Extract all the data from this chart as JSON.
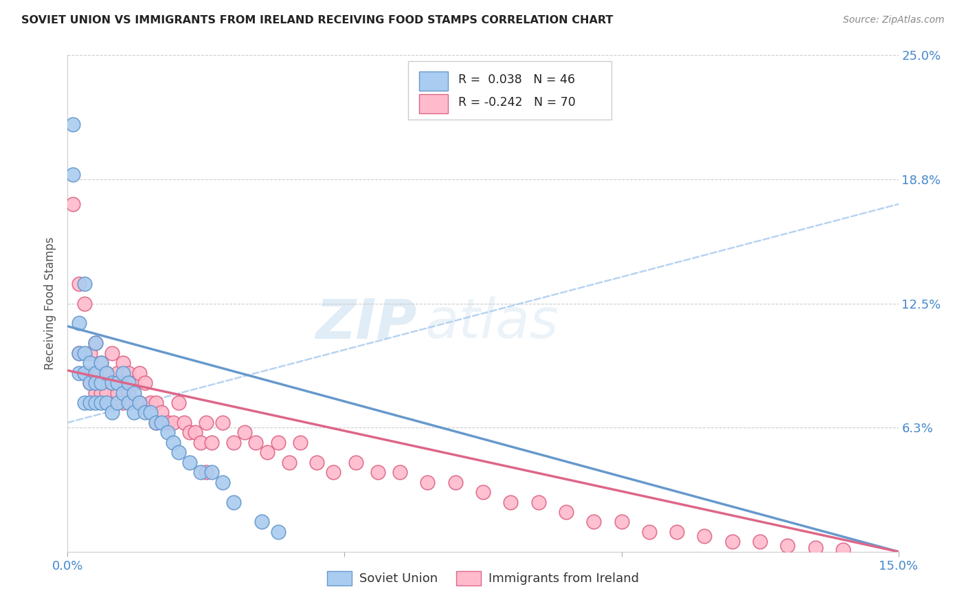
{
  "title": "SOVIET UNION VS IMMIGRANTS FROM IRELAND RECEIVING FOOD STAMPS CORRELATION CHART",
  "source": "Source: ZipAtlas.com",
  "ylabel": "Receiving Food Stamps",
  "xlim": [
    0.0,
    0.15
  ],
  "ylim": [
    0.0,
    0.25
  ],
  "series1_label": "Soviet Union",
  "series1_R": "0.038",
  "series1_N": "46",
  "series1_color": "#aaccf0",
  "series1_edge": "#6699cc",
  "series2_label": "Immigrants from Ireland",
  "series2_R": "-0.242",
  "series2_N": "70",
  "series2_color": "#ffbbcc",
  "series2_edge": "#dd6688",
  "background_color": "#ffffff",
  "grid_color": "#cccccc",
  "watermark_zip": "ZIP",
  "watermark_atlas": "atlas",
  "ytick_positions": [
    0.0,
    0.0625,
    0.125,
    0.1875,
    0.25
  ],
  "ytick_labels_right": [
    "",
    "6.3%",
    "12.5%",
    "18.8%",
    "25.0%"
  ],
  "xtick_positions": [
    0.0,
    0.05,
    0.1,
    0.15
  ],
  "xtick_labels": [
    "0.0%",
    "",
    "",
    "15.0%"
  ],
  "soviet_x": [
    0.001,
    0.001,
    0.002,
    0.002,
    0.002,
    0.003,
    0.003,
    0.003,
    0.003,
    0.004,
    0.004,
    0.004,
    0.005,
    0.005,
    0.005,
    0.005,
    0.006,
    0.006,
    0.006,
    0.007,
    0.007,
    0.008,
    0.008,
    0.009,
    0.009,
    0.01,
    0.01,
    0.011,
    0.011,
    0.012,
    0.012,
    0.013,
    0.014,
    0.015,
    0.016,
    0.017,
    0.018,
    0.019,
    0.02,
    0.022,
    0.024,
    0.026,
    0.028,
    0.03,
    0.035,
    0.038
  ],
  "soviet_y": [
    0.215,
    0.19,
    0.115,
    0.1,
    0.09,
    0.135,
    0.1,
    0.09,
    0.075,
    0.095,
    0.085,
    0.075,
    0.105,
    0.09,
    0.085,
    0.075,
    0.095,
    0.085,
    0.075,
    0.09,
    0.075,
    0.085,
    0.07,
    0.085,
    0.075,
    0.09,
    0.08,
    0.085,
    0.075,
    0.08,
    0.07,
    0.075,
    0.07,
    0.07,
    0.065,
    0.065,
    0.06,
    0.055,
    0.05,
    0.045,
    0.04,
    0.04,
    0.035,
    0.025,
    0.015,
    0.01
  ],
  "ireland_x": [
    0.001,
    0.002,
    0.002,
    0.003,
    0.003,
    0.004,
    0.004,
    0.005,
    0.005,
    0.005,
    0.006,
    0.006,
    0.007,
    0.007,
    0.008,
    0.008,
    0.009,
    0.009,
    0.01,
    0.01,
    0.011,
    0.011,
    0.012,
    0.013,
    0.013,
    0.014,
    0.015,
    0.016,
    0.016,
    0.017,
    0.018,
    0.019,
    0.02,
    0.021,
    0.022,
    0.023,
    0.024,
    0.025,
    0.026,
    0.028,
    0.03,
    0.032,
    0.034,
    0.036,
    0.038,
    0.04,
    0.042,
    0.045,
    0.048,
    0.052,
    0.056,
    0.06,
    0.065,
    0.07,
    0.075,
    0.08,
    0.085,
    0.09,
    0.095,
    0.1,
    0.105,
    0.11,
    0.115,
    0.12,
    0.125,
    0.13,
    0.135,
    0.14,
    0.01,
    0.025
  ],
  "ireland_y": [
    0.175,
    0.135,
    0.1,
    0.125,
    0.09,
    0.1,
    0.085,
    0.105,
    0.09,
    0.08,
    0.095,
    0.08,
    0.09,
    0.08,
    0.1,
    0.085,
    0.09,
    0.08,
    0.095,
    0.085,
    0.09,
    0.08,
    0.085,
    0.09,
    0.075,
    0.085,
    0.075,
    0.075,
    0.065,
    0.07,
    0.065,
    0.065,
    0.075,
    0.065,
    0.06,
    0.06,
    0.055,
    0.065,
    0.055,
    0.065,
    0.055,
    0.06,
    0.055,
    0.05,
    0.055,
    0.045,
    0.055,
    0.045,
    0.04,
    0.045,
    0.04,
    0.04,
    0.035,
    0.035,
    0.03,
    0.025,
    0.025,
    0.02,
    0.015,
    0.015,
    0.01,
    0.01,
    0.008,
    0.005,
    0.005,
    0.003,
    0.002,
    0.001,
    0.075,
    0.04
  ],
  "trendline_x0": 0.0,
  "trendline_x1": 0.15,
  "trendline_y0": 0.065,
  "trendline_y1": 0.175
}
